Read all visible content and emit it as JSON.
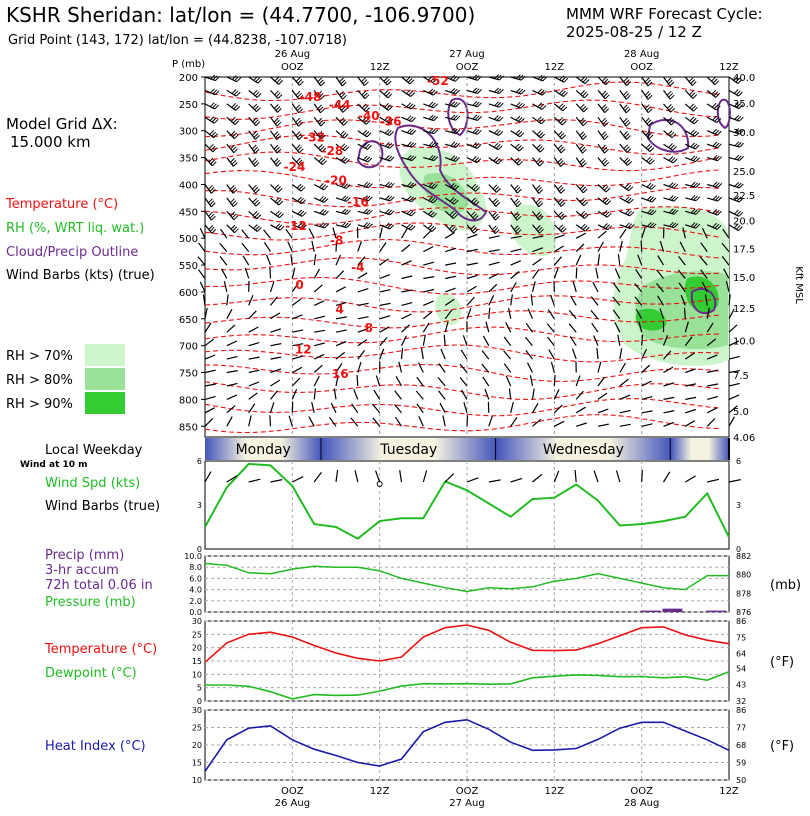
{
  "header": {
    "station_title": "KSHR Sheridan:  lat/lon = (44.7700, -106.9700)",
    "grid_point": "Grid Point (143, 172)  lat/lon = (44.8238, -107.0718)",
    "model_line1": "MMM WRF Forecast Cycle:",
    "model_line2": "2025-08-25 / 12  Z"
  },
  "sidebar": {
    "grid_dx_line1": "Model Grid ΔX:",
    "grid_dx_line2": "15.000 km",
    "legend_temperature": "Temperature (°C)",
    "legend_rh": "RH (%, WRT liq. wat.)",
    "legend_cloud": "Cloud/Precip Outline",
    "legend_wind": "Wind Barbs (kts) (true)",
    "rh_70": "RH > 70%",
    "rh_80": "RH > 80%",
    "rh_90": "RH > 90%",
    "local_weekday": "Local Weekday",
    "wind_at_10m": "Wind at 10 m",
    "wind_spd_label": "Wind Spd (kts)",
    "wind_barbs_label": "Wind Barbs (true)",
    "precip_label": "Precip (mm)",
    "precip_accum": "3-hr accum",
    "precip_total": "72h total 0.06 in",
    "pressure_label": "Pressure (mb)",
    "temp_label": "Temperature (°C)",
    "dew_label": "Dewpoint (°C)",
    "heat_label": "Heat Index (°C)"
  },
  "colors": {
    "temperature": "#ee1111",
    "rh_green": "#22bb22",
    "cloud_outline": "#6a2a8a",
    "heat_index": "#1a1aaa",
    "rh70": "#ccf5cc",
    "rh80": "#99e199",
    "rh90": "#33cc33",
    "weekday_bar": "#4455bb"
  },
  "time_axis": {
    "top_labels": [
      {
        "t": 12,
        "time": "OOZ",
        "date": "26 Aug"
      },
      {
        "t": 24,
        "time": "12Z",
        "date": ""
      },
      {
        "t": 36,
        "time": "OOZ",
        "date": "27 Aug"
      },
      {
        "t": 48,
        "time": "12Z",
        "date": ""
      },
      {
        "t": 60,
        "time": "OOZ",
        "date": "28 Aug"
      },
      {
        "t": 72,
        "time": "12Z",
        "date": ""
      }
    ],
    "bottom_labels": [
      {
        "t": 12,
        "time": "OOZ",
        "date": "26 Aug"
      },
      {
        "t": 24,
        "time": "12Z",
        "date": ""
      },
      {
        "t": 36,
        "time": "OOZ",
        "date": "27 Aug"
      },
      {
        "t": 48,
        "time": "12Z",
        "date": ""
      },
      {
        "t": 60,
        "time": "OOZ",
        "date": "28 Aug"
      },
      {
        "t": 72,
        "time": "12Z",
        "date": ""
      }
    ],
    "weekdays": [
      {
        "name": "Monday",
        "start": 0,
        "end": 16
      },
      {
        "name": "Tuesday",
        "start": 16,
        "end": 40
      },
      {
        "name": "Wednesday",
        "start": 40,
        "end": 64
      },
      {
        "name": "",
        "start": 64,
        "end": 72
      }
    ]
  },
  "chart_data": [
    {
      "type": "heatmap",
      "panel": "time-height cross section",
      "xlim": [
        0,
        72
      ],
      "pressure_unit_label": "P (mb)",
      "pressure_levels": [
        200,
        250,
        300,
        350,
        400,
        450,
        500,
        550,
        600,
        650,
        700,
        750,
        800,
        850
      ],
      "height_label": "Kft MSL",
      "height_ticks": [
        {
          "p": 200,
          "label": "40.0"
        },
        {
          "p": 248,
          "label": "35.0"
        },
        {
          "p": 302,
          "label": "30.0"
        },
        {
          "p": 375,
          "label": "25.0"
        },
        {
          "p": 420,
          "label": "22.5"
        },
        {
          "p": 467,
          "label": "20.0"
        },
        {
          "p": 519,
          "label": "17.5"
        },
        {
          "p": 572,
          "label": "15.0"
        },
        {
          "p": 630,
          "label": "12.5"
        },
        {
          "p": 690,
          "label": "10.0"
        },
        {
          "p": 755,
          "label": "7.5"
        },
        {
          "p": 822,
          "label": "5.0"
        },
        {
          "p": 870,
          "label": "4.06"
        }
      ],
      "temperature_labels": [
        {
          "t": 14.5,
          "p": 245,
          "label": "-48"
        },
        {
          "t": 32,
          "p": 215,
          "label": "-52"
        },
        {
          "t": 18.5,
          "p": 260,
          "label": "-44"
        },
        {
          "t": 22.5,
          "p": 280,
          "label": "-40"
        },
        {
          "t": 25.5,
          "p": 290,
          "label": "-36"
        },
        {
          "t": 15,
          "p": 320,
          "label": "-32"
        },
        {
          "t": 17.5,
          "p": 345,
          "label": "-28"
        },
        {
          "t": 12.3,
          "p": 375,
          "label": "-24"
        },
        {
          "t": 18,
          "p": 400,
          "label": "-20"
        },
        {
          "t": 21,
          "p": 440,
          "label": "-16"
        },
        {
          "t": 12.5,
          "p": 485,
          "label": "-12"
        },
        {
          "t": 18.1,
          "p": 512,
          "label": "-8"
        },
        {
          "t": 21,
          "p": 562,
          "label": "-4"
        },
        {
          "t": 13,
          "p": 595,
          "label": "0"
        },
        {
          "t": 18.5,
          "p": 640,
          "label": "4"
        },
        {
          "t": 22.5,
          "p": 675,
          "label": "8"
        },
        {
          "t": 13.5,
          "p": 715,
          "label": "12"
        },
        {
          "t": 18.6,
          "p": 760,
          "label": "16"
        }
      ]
    },
    {
      "type": "line",
      "panel": "wind speed",
      "ylim": [
        0,
        6
      ],
      "yticks": [
        0,
        3,
        6
      ],
      "x": [
        0,
        3,
        6,
        9,
        12,
        15,
        18,
        21,
        24,
        27,
        30,
        33,
        36,
        39,
        42,
        45,
        48,
        51,
        54,
        57,
        60,
        63,
        66,
        69,
        72
      ],
      "series": [
        {
          "name": "Wind Spd (kts)",
          "values": [
            1.5,
            4.2,
            5.8,
            5.7,
            4.3,
            1.7,
            1.5,
            0.7,
            1.9,
            2.1,
            2.1,
            4.6,
            4.0,
            3.1,
            2.2,
            3.4,
            3.5,
            4.4,
            3.3,
            1.6,
            1.7,
            1.9,
            2.2,
            3.8,
            0.8
          ]
        }
      ]
    },
    {
      "type": "line",
      "panel": "precip and pressure",
      "ylim": [
        0,
        10
      ],
      "yticks_left": [
        0,
        2.0,
        4.0,
        6.0,
        8.0,
        10.0
      ],
      "yticks_right": [
        876,
        878,
        880,
        882
      ],
      "right_ylim": [
        876,
        882
      ],
      "right_unit": "(mb)",
      "x": [
        0,
        3,
        6,
        9,
        12,
        15,
        18,
        21,
        24,
        27,
        30,
        33,
        36,
        39,
        42,
        45,
        48,
        51,
        54,
        57,
        60,
        63,
        66,
        69,
        72
      ],
      "series": [
        {
          "name": "Pressure (mb)",
          "values": [
            881.2,
            881.0,
            880.2,
            880.1,
            880.6,
            880.9,
            880.8,
            880.8,
            880.4,
            879.6,
            879.1,
            878.6,
            878.2,
            878.6,
            878.5,
            878.7,
            879.3,
            879.6,
            880.1,
            879.6,
            879.1,
            878.6,
            878.4,
            879.9,
            879.9
          ]
        }
      ],
      "precip_bars": [
        {
          "x": 60,
          "value": 0.25
        },
        {
          "x": 63,
          "value": 0.6
        },
        {
          "x": 69,
          "value": 0.25
        }
      ]
    },
    {
      "type": "line",
      "panel": "temperature and dewpoint",
      "ylim": [
        0,
        30
      ],
      "yticks_left": [
        0,
        5,
        10,
        15,
        20,
        25,
        30
      ],
      "yticks_right": [
        32,
        43,
        54,
        64,
        75,
        86
      ],
      "right_unit": "(°F)",
      "x": [
        0,
        3,
        6,
        9,
        12,
        15,
        18,
        21,
        24,
        27,
        30,
        33,
        36,
        39,
        42,
        45,
        48,
        51,
        54,
        57,
        60,
        63,
        66,
        69,
        72
      ],
      "series": [
        {
          "name": "Temperature (°C)",
          "values": [
            14.5,
            21.8,
            25.0,
            25.8,
            24.0,
            20.8,
            18.0,
            16.0,
            15.0,
            16.5,
            24.0,
            27.5,
            28.5,
            26.5,
            22.0,
            19.0,
            18.9,
            19.1,
            21.5,
            24.5,
            27.5,
            27.8,
            24.8,
            22.8,
            21.5
          ]
        },
        {
          "name": "Dewpoint (°C)",
          "values": [
            6.0,
            6.0,
            5.5,
            3.5,
            0.8,
            2.4,
            2.1,
            2.2,
            3.7,
            5.6,
            6.5,
            6.4,
            6.5,
            6.3,
            6.4,
            8.7,
            9.3,
            9.8,
            9.6,
            9.1,
            9.2,
            8.7,
            9.1,
            7.8,
            11.0
          ]
        }
      ]
    },
    {
      "type": "line",
      "panel": "heat index",
      "ylim": [
        10,
        30
      ],
      "yticks_left": [
        10,
        15,
        20,
        25,
        30
      ],
      "yticks_right": [
        50,
        59,
        68,
        77,
        86
      ],
      "right_unit": "(°F)",
      "x": [
        0,
        3,
        6,
        9,
        12,
        15,
        18,
        21,
        24,
        27,
        30,
        33,
        36,
        39,
        42,
        45,
        48,
        51,
        54,
        57,
        60,
        63,
        66,
        69,
        72
      ],
      "series": [
        {
          "name": "Heat Index (°C)",
          "values": [
            12.5,
            21.5,
            24.8,
            25.5,
            21.5,
            18.8,
            17.0,
            15.0,
            14.0,
            16.0,
            23.8,
            26.5,
            27.2,
            24.5,
            20.8,
            18.5,
            18.6,
            19.0,
            21.6,
            24.8,
            26.5,
            26.5,
            24.0,
            21.5,
            18.5
          ]
        }
      ]
    }
  ]
}
